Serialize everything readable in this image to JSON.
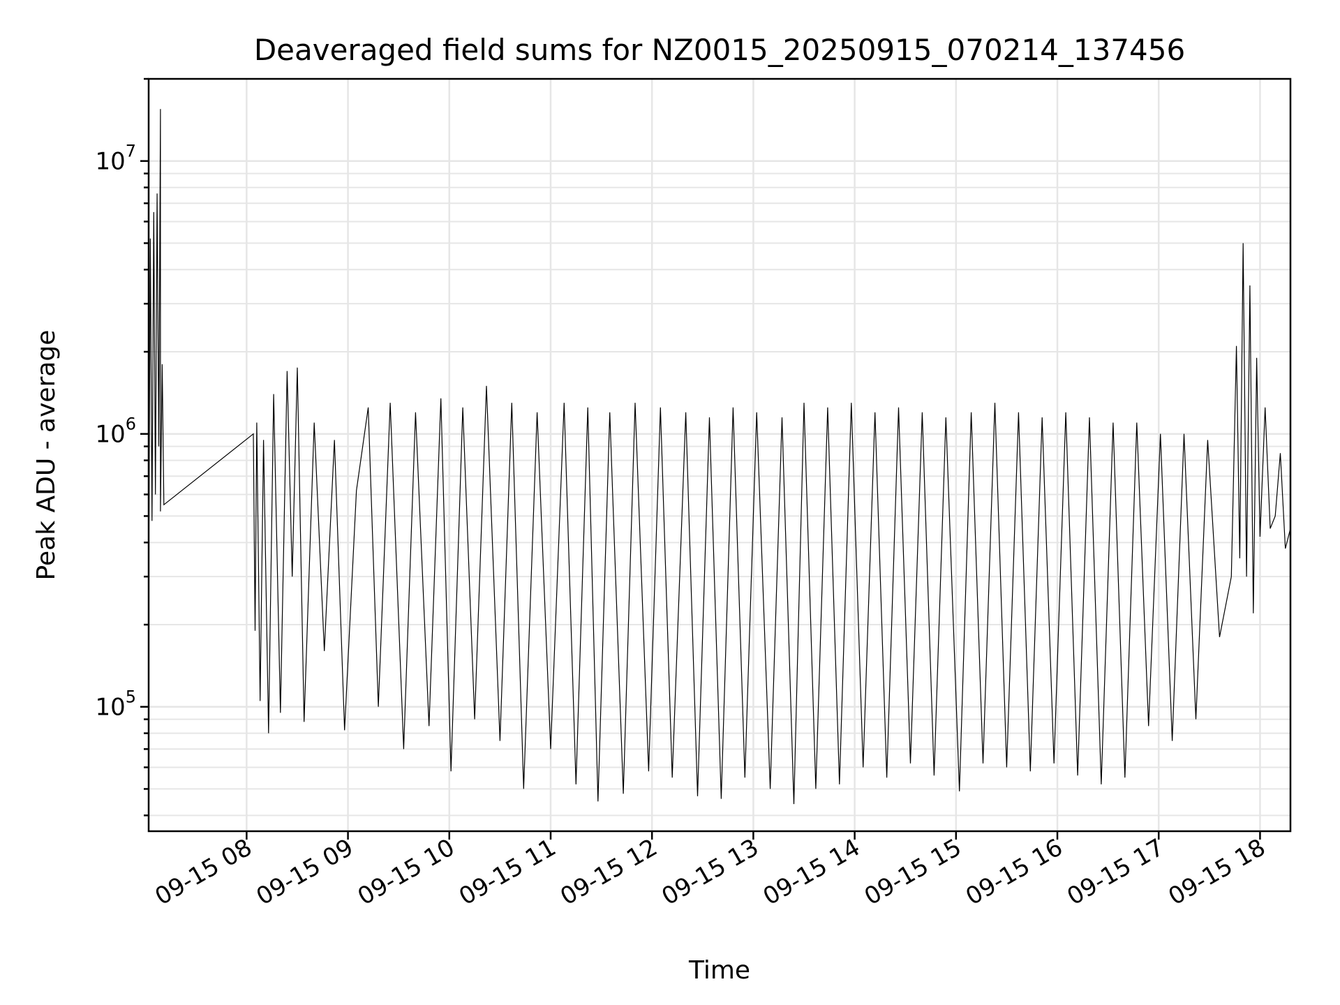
{
  "chart_data": {
    "type": "line",
    "title": "Deaveraged field sums for NZ0015_20250915_070214_137456",
    "xlabel": "Time",
    "ylabel": "Peak ADU - average",
    "y_scale": "log",
    "grid": "on (major and minor)",
    "legend": "none",
    "line_color": "#000000",
    "xlim": [
      "2025-09-15 07:02",
      "2025-09-15 18:18"
    ],
    "ylim": [
      35000,
      20000000
    ],
    "x_ticks": [
      "09-15 08",
      "09-15 09",
      "09-15 10",
      "09-15 11",
      "09-15 12",
      "09-15 13",
      "09-15 14",
      "09-15 15",
      "09-15 16",
      "09-15 17",
      "09-15 18"
    ],
    "y_ticks": [
      {
        "base": "10",
        "exp": "5",
        "value": 100000
      },
      {
        "base": "10",
        "exp": "6",
        "value": 1000000
      },
      {
        "base": "10",
        "exp": "7",
        "value": 10000000
      }
    ],
    "series": [
      {
        "points": [
          [
            "2025-09-15 07:02",
            280000
          ],
          [
            "2025-09-15 07:03",
            5200000
          ],
          [
            "2025-09-15 07:04",
            480000
          ],
          [
            "2025-09-15 07:05",
            6500000
          ],
          [
            "2025-09-15 07:06",
            600000
          ],
          [
            "2025-09-15 07:07",
            7600000
          ],
          [
            "2025-09-15 07:08",
            900000
          ],
          [
            "2025-09-15 07:09",
            15500000
          ],
          [
            "2025-09-15 07:09",
            520000
          ],
          [
            "2025-09-15 07:10",
            1800000
          ],
          [
            "2025-09-15 07:11",
            550000
          ],
          [
            "2025-09-15 08:04",
            1000000
          ],
          [
            "2025-09-15 08:05",
            190000
          ],
          [
            "2025-09-15 08:06",
            1100000
          ],
          [
            "2025-09-15 08:08",
            105000
          ],
          [
            "2025-09-15 08:10",
            950000
          ],
          [
            "2025-09-15 08:13",
            80000
          ],
          [
            "2025-09-15 08:16",
            1400000
          ],
          [
            "2025-09-15 08:20",
            95000
          ],
          [
            "2025-09-15 08:24",
            1700000
          ],
          [
            "2025-09-15 08:27",
            300000
          ],
          [
            "2025-09-15 08:30",
            1750000
          ],
          [
            "2025-09-15 08:34",
            88000
          ],
          [
            "2025-09-15 08:40",
            1100000
          ],
          [
            "2025-09-15 08:46",
            160000
          ],
          [
            "2025-09-15 08:52",
            950000
          ],
          [
            "2025-09-15 08:58",
            82000
          ],
          [
            "2025-09-15 09:05",
            620000
          ],
          [
            "2025-09-15 09:12",
            1250000
          ],
          [
            "2025-09-15 09:18",
            100000
          ],
          [
            "2025-09-15 09:25",
            1300000
          ],
          [
            "2025-09-15 09:33",
            70000
          ],
          [
            "2025-09-15 09:40",
            1200000
          ],
          [
            "2025-09-15 09:48",
            85000
          ],
          [
            "2025-09-15 09:55",
            1350000
          ],
          [
            "2025-09-15 10:01",
            58000
          ],
          [
            "2025-09-15 10:08",
            1250000
          ],
          [
            "2025-09-15 10:15",
            90000
          ],
          [
            "2025-09-15 10:22",
            1500000
          ],
          [
            "2025-09-15 10:30",
            75000
          ],
          [
            "2025-09-15 10:37",
            1300000
          ],
          [
            "2025-09-15 10:44",
            50000
          ],
          [
            "2025-09-15 10:52",
            1200000
          ],
          [
            "2025-09-15 11:00",
            70000
          ],
          [
            "2025-09-15 11:08",
            1300000
          ],
          [
            "2025-09-15 11:15",
            52000
          ],
          [
            "2025-09-15 11:22",
            1250000
          ],
          [
            "2025-09-15 11:28",
            45000
          ],
          [
            "2025-09-15 11:35",
            1200000
          ],
          [
            "2025-09-15 11:43",
            48000
          ],
          [
            "2025-09-15 11:50",
            1300000
          ],
          [
            "2025-09-15 11:58",
            58000
          ],
          [
            "2025-09-15 12:05",
            1250000
          ],
          [
            "2025-09-15 12:12",
            55000
          ],
          [
            "2025-09-15 12:20",
            1200000
          ],
          [
            "2025-09-15 12:27",
            47000
          ],
          [
            "2025-09-15 12:34",
            1150000
          ],
          [
            "2025-09-15 12:41",
            46000
          ],
          [
            "2025-09-15 12:48",
            1250000
          ],
          [
            "2025-09-15 12:55",
            55000
          ],
          [
            "2025-09-15 13:02",
            1200000
          ],
          [
            "2025-09-15 13:10",
            50000
          ],
          [
            "2025-09-15 13:17",
            1150000
          ],
          [
            "2025-09-15 13:24",
            44000
          ],
          [
            "2025-09-15 13:30",
            1300000
          ],
          [
            "2025-09-15 13:37",
            50000
          ],
          [
            "2025-09-15 13:44",
            1250000
          ],
          [
            "2025-09-15 13:51",
            52000
          ],
          [
            "2025-09-15 13:58",
            1300000
          ],
          [
            "2025-09-15 14:05",
            60000
          ],
          [
            "2025-09-15 14:12",
            1200000
          ],
          [
            "2025-09-15 14:19",
            55000
          ],
          [
            "2025-09-15 14:26",
            1250000
          ],
          [
            "2025-09-15 14:33",
            62000
          ],
          [
            "2025-09-15 14:40",
            1200000
          ],
          [
            "2025-09-15 14:47",
            56000
          ],
          [
            "2025-09-15 14:54",
            1150000
          ],
          [
            "2025-09-15 15:02",
            49000
          ],
          [
            "2025-09-15 15:09",
            1200000
          ],
          [
            "2025-09-15 15:16",
            62000
          ],
          [
            "2025-09-15 15:23",
            1300000
          ],
          [
            "2025-09-15 15:30",
            60000
          ],
          [
            "2025-09-15 15:37",
            1200000
          ],
          [
            "2025-09-15 15:44",
            58000
          ],
          [
            "2025-09-15 15:51",
            1150000
          ],
          [
            "2025-09-15 15:58",
            62000
          ],
          [
            "2025-09-15 16:05",
            1200000
          ],
          [
            "2025-09-15 16:12",
            56000
          ],
          [
            "2025-09-15 16:19",
            1150000
          ],
          [
            "2025-09-15 16:26",
            52000
          ],
          [
            "2025-09-15 16:33",
            1100000
          ],
          [
            "2025-09-15 16:40",
            55000
          ],
          [
            "2025-09-15 16:47",
            1100000
          ],
          [
            "2025-09-15 16:54",
            85000
          ],
          [
            "2025-09-15 17:01",
            1000000
          ],
          [
            "2025-09-15 17:08",
            75000
          ],
          [
            "2025-09-15 17:15",
            1000000
          ],
          [
            "2025-09-15 17:22",
            90000
          ],
          [
            "2025-09-15 17:29",
            950000
          ],
          [
            "2025-09-15 17:36",
            180000
          ],
          [
            "2025-09-15 17:43",
            300000
          ],
          [
            "2025-09-15 17:46",
            2100000
          ],
          [
            "2025-09-15 17:48",
            350000
          ],
          [
            "2025-09-15 17:50",
            5000000
          ],
          [
            "2025-09-15 17:52",
            300000
          ],
          [
            "2025-09-15 17:54",
            3500000
          ],
          [
            "2025-09-15 17:56",
            220000
          ],
          [
            "2025-09-15 17:58",
            1900000
          ],
          [
            "2025-09-15 18:00",
            420000
          ],
          [
            "2025-09-15 18:03",
            1250000
          ],
          [
            "2025-09-15 18:06",
            450000
          ],
          [
            "2025-09-15 18:09",
            500000
          ],
          [
            "2025-09-15 18:12",
            850000
          ],
          [
            "2025-09-15 18:15",
            380000
          ],
          [
            "2025-09-15 18:18",
            450000
          ]
        ]
      }
    ]
  }
}
